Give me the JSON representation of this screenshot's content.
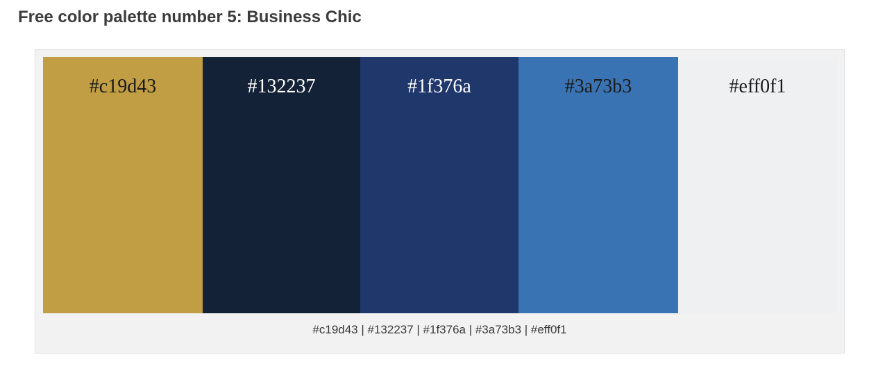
{
  "title": "Free color palette number 5: Business Chic",
  "palette": {
    "swatches": [
      {
        "hex_label": "#c19d43",
        "color": "#c19d43",
        "text_color": "#1a1a1a"
      },
      {
        "hex_label": "#132237",
        "color": "#132237",
        "text_color": "#ffffff"
      },
      {
        "hex_label": "#1f376a",
        "color": "#1f376a",
        "text_color": "#ffffff"
      },
      {
        "hex_label": "#3a73b3",
        "color": "#3a73b3",
        "text_color": "#1a1a1a"
      },
      {
        "hex_label": "#eff0f1",
        "color": "#eff0f1",
        "text_color": "#1a1a1a"
      }
    ],
    "summary": "#c19d43 | #132237 | #1f376a | #3a73b3 | #eff0f1"
  }
}
